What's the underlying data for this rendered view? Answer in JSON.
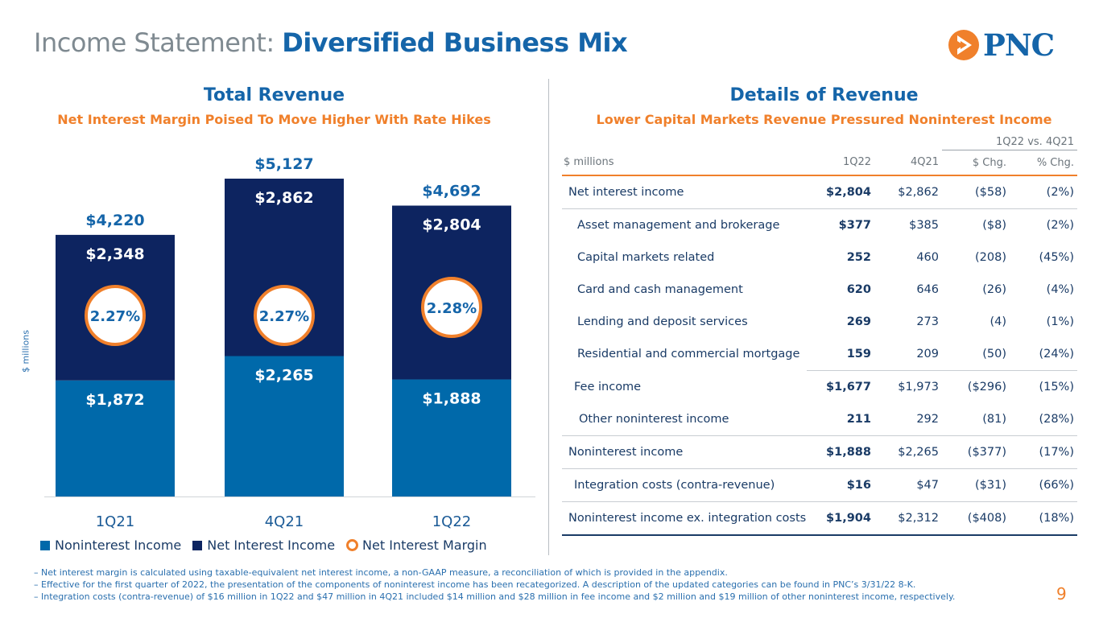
{
  "title": {
    "prefix": "Income Statement: ",
    "main": "Diversified Business Mix"
  },
  "logo": {
    "text": "PNC"
  },
  "left": {
    "title": "Total Revenue",
    "subtitle": "Net Interest Margin Poised To Move Higher With Rate Hikes",
    "axis_label": "$ millions"
  },
  "chart_data": {
    "type": "bar",
    "stacked": true,
    "categories": [
      "1Q21",
      "4Q21",
      "1Q22"
    ],
    "series": [
      {
        "name": "Noninterest Income",
        "values": [
          1872,
          2265,
          1888
        ],
        "labels": [
          "$1,872",
          "$2,265",
          "$1,888"
        ],
        "color": "#0069aa"
      },
      {
        "name": "Net Interest Income",
        "values": [
          2348,
          2862,
          2804
        ],
        "labels": [
          "$2,348",
          "$2,862",
          "$2,804"
        ],
        "color": "#0d2460"
      }
    ],
    "totals": [
      "$4,220",
      "$5,127",
      "$4,692"
    ],
    "margin": {
      "name": "Net Interest Margin",
      "labels": [
        "2.27%",
        "2.27%",
        "2.28%"
      ],
      "color": "#f0802b"
    },
    "ylim": [
      0,
      5127
    ]
  },
  "right": {
    "title": "Details of Revenue",
    "subtitle": "Lower Capital Markets Revenue Pressured Noninterest Income",
    "group_header": "1Q22 vs. 4Q21",
    "columns": [
      "$ millions",
      "1Q22",
      "4Q21",
      "$ Chg.",
      "% Chg."
    ],
    "rows": [
      {
        "label": "Net interest income",
        "c1": "$2,804",
        "c2": "$2,862",
        "c3": "($58)",
        "c4": "(2%)"
      },
      {
        "label": "Asset management and brokerage",
        "c1": "$377",
        "c2": "$385",
        "c3": "($8)",
        "c4": "(2%)"
      },
      {
        "label": "Capital markets related",
        "c1": "252",
        "c2": "460",
        "c3": "(208)",
        "c4": "(45%)"
      },
      {
        "label": "Card and cash management",
        "c1": "620",
        "c2": "646",
        "c3": "(26)",
        "c4": "(4%)"
      },
      {
        "label": "Lending and deposit services",
        "c1": "269",
        "c2": "273",
        "c3": "(4)",
        "c4": "(1%)"
      },
      {
        "label": "Residential and commercial mortgage",
        "c1": "159",
        "c2": "209",
        "c3": "(50)",
        "c4": "(24%)"
      },
      {
        "label": "Fee income",
        "c1": "$1,677",
        "c2": "$1,973",
        "c3": "($296)",
        "c4": "(15%)"
      },
      {
        "label": "Other noninterest income",
        "c1": "211",
        "c2": "292",
        "c3": "(81)",
        "c4": "(28%)"
      },
      {
        "label": "Noninterest income",
        "c1": "$1,888",
        "c2": "$2,265",
        "c3": "($377)",
        "c4": "(17%)"
      },
      {
        "label": "Integration costs (contra-revenue)",
        "c1": "$16",
        "c2": "$47",
        "c3": "($31)",
        "c4": "(66%)"
      },
      {
        "label": "Noninterest income ex. integration costs",
        "c1": "$1,904",
        "c2": "$2,312",
        "c3": "($408)",
        "c4": "(18%)"
      }
    ]
  },
  "footnotes": [
    "– Net interest margin is calculated using taxable-equivalent net interest income, a non-GAAP measure, a reconciliation of which is provided in the appendix.",
    "– Effective for the first quarter of 2022, the presentation of the components of noninterest income has been recategorized. A description of the updated categories can be found in PNC’s 3/31/22 8-K.",
    "– Integration costs (contra-revenue) of $16 million in 1Q22 and $47 million in 4Q21 included $14 million and $28 million in fee income and $2 million and $19 million of other noninterest income, respectively."
  ],
  "page_number": "9"
}
